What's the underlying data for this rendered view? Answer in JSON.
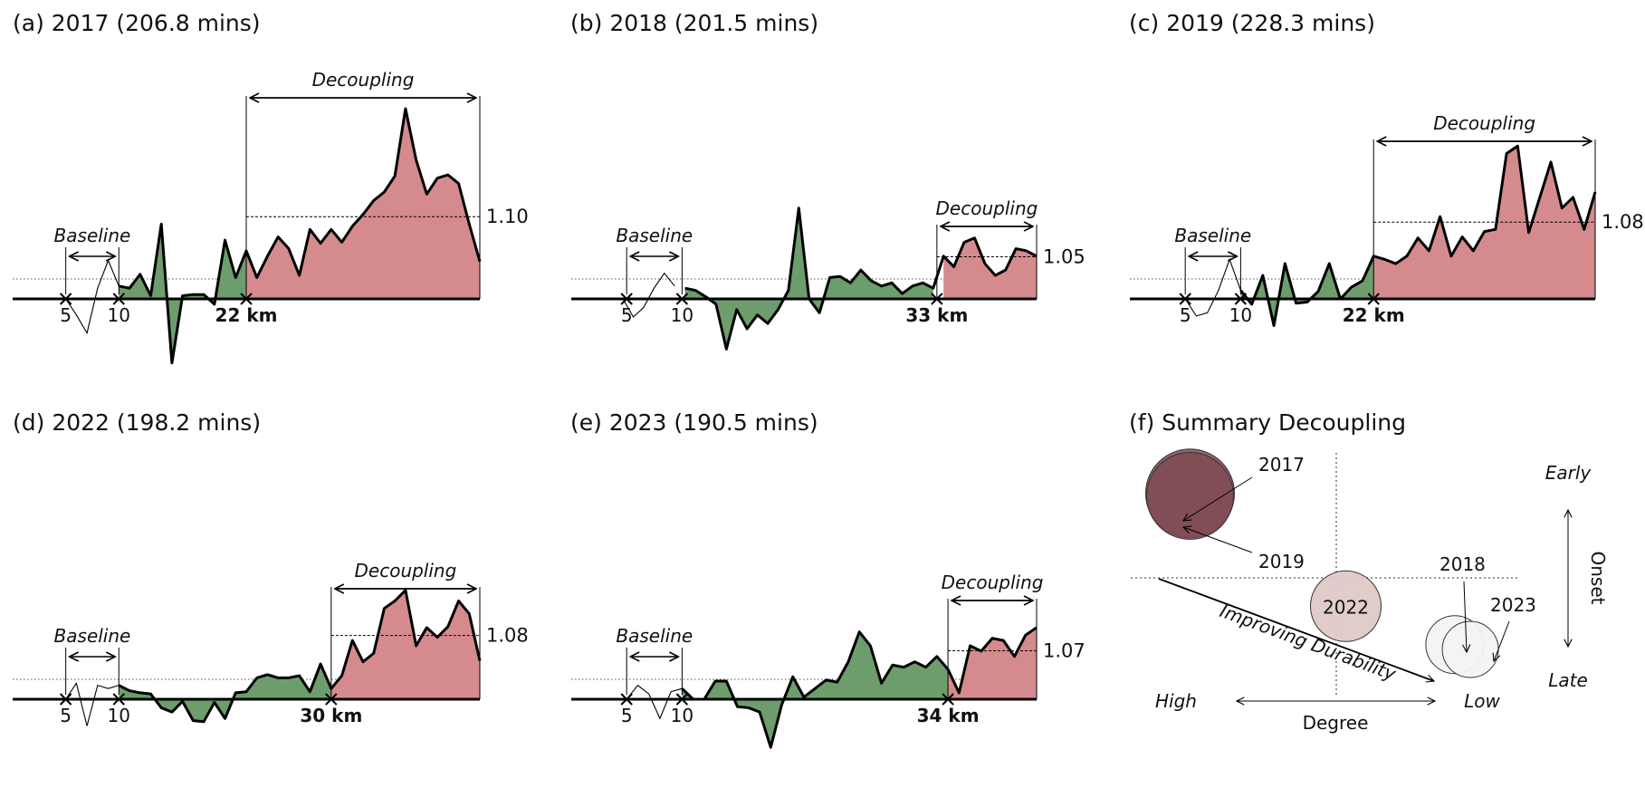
{
  "figure_title": "",
  "colors": {
    "positive": "#d58b8e",
    "negative": "#6d9d6c",
    "line": "#000000"
  },
  "chart_data": [
    {
      "type": "area",
      "title": "(a) 2017 (206.8 mins)",
      "baseline_label": "Baseline",
      "baseline_ticks": [
        "5",
        "10"
      ],
      "baseline_range": [
        5,
        10
      ],
      "decoupling_label": "Decoupling",
      "onset_km": 22,
      "onset_label": "22 km",
      "ratio_label": "1.10",
      "ratio_value": 1.1,
      "x_start": 0,
      "x_end": 44,
      "y_values": [
        0.0,
        0.0,
        0.0,
        0.0,
        0.0,
        0.0,
        -0.15,
        -0.32,
        0.1,
        0.36,
        0.12,
        0.1,
        0.23,
        0.03,
        0.7,
        -0.6,
        0.03,
        0.04,
        0.04,
        -0.05,
        0.55,
        0.2,
        0.45,
        0.2,
        0.4,
        0.58,
        0.47,
        0.22,
        0.65,
        0.52,
        0.65,
        0.53,
        0.68,
        0.79,
        0.92,
        1.0,
        1.15,
        1.78,
        1.3,
        0.98,
        1.13,
        1.16,
        1.08,
        0.7,
        0.35
      ]
    },
    {
      "type": "area",
      "title": "(b) 2018 (201.5 mins)",
      "baseline_label": "Baseline",
      "baseline_ticks": [
        "5",
        "10"
      ],
      "baseline_range": [
        5,
        10
      ],
      "decoupling_label": "Decoupling",
      "onset_km": 33,
      "onset_label": "33 km",
      "ratio_label": "1.05",
      "ratio_value": 1.05,
      "x_start": 0,
      "x_end": 42,
      "y_values": [
        0.0,
        0.0,
        0.0,
        0.0,
        0.0,
        0.0,
        -0.17,
        -0.08,
        0.1,
        0.24,
        0.12,
        0.1,
        0.08,
        0.02,
        -0.05,
        -0.47,
        -0.1,
        -0.28,
        -0.15,
        -0.23,
        -0.1,
        0.08,
        0.85,
        0.0,
        -0.13,
        0.2,
        0.21,
        0.15,
        0.27,
        0.17,
        0.12,
        0.15,
        0.05,
        0.12,
        0.15,
        0.1,
        0.4,
        0.3,
        0.53,
        0.57,
        0.33,
        0.22,
        0.27,
        0.47,
        0.45,
        0.4
      ]
    },
    {
      "type": "area",
      "title": "(c) 2019 (228.3 mins)",
      "baseline_label": "Baseline",
      "baseline_ticks": [
        "5",
        "10"
      ],
      "baseline_range": [
        5,
        10
      ],
      "decoupling_label": "Decoupling",
      "onset_km": 22,
      "onset_label": "22 km",
      "ratio_label": "1.08",
      "ratio_value": 1.08,
      "x_start": 0,
      "x_end": 42,
      "y_values": [
        0.0,
        0.0,
        0.0,
        0.0,
        0.0,
        0.0,
        -0.16,
        -0.13,
        0.08,
        0.37,
        0.08,
        -0.05,
        0.22,
        -0.25,
        0.33,
        -0.04,
        -0.03,
        0.07,
        0.33,
        0.0,
        0.11,
        0.17,
        0.4,
        0.37,
        0.33,
        0.4,
        0.57,
        0.45,
        0.77,
        0.4,
        0.58,
        0.45,
        0.63,
        0.65,
        1.36,
        1.43,
        0.62,
        0.95,
        1.28,
        0.85,
        0.95,
        0.65,
        1.0
      ]
    },
    {
      "type": "area",
      "title": "(d) 2022 (198.2 mins)",
      "baseline_label": "Baseline",
      "baseline_ticks": [
        "5",
        "10"
      ],
      "baseline_range": [
        5,
        10
      ],
      "decoupling_label": "Decoupling",
      "onset_km": 30,
      "onset_label": "30 km",
      "ratio_label": "1.08",
      "ratio_value": 1.08,
      "x_start": 0,
      "x_end": 44,
      "y_values": [
        0.0,
        0.0,
        0.0,
        0.0,
        0.0,
        0.0,
        0.15,
        -0.25,
        0.13,
        0.1,
        0.13,
        0.08,
        0.06,
        0.05,
        -0.08,
        -0.12,
        -0.02,
        -0.2,
        -0.21,
        -0.03,
        -0.18,
        0.06,
        0.07,
        0.2,
        0.23,
        0.2,
        0.2,
        0.22,
        0.07,
        0.33,
        0.1,
        0.22,
        0.55,
        0.35,
        0.43,
        0.85,
        0.92,
        1.02,
        0.5,
        0.67,
        0.58,
        0.68,
        0.92,
        0.8,
        0.36
      ]
    },
    {
      "type": "area",
      "title": "(e) 2023 (190.5 mins)",
      "baseline_label": "Baseline",
      "baseline_ticks": [
        "5",
        "10"
      ],
      "baseline_range": [
        5,
        10
      ],
      "decoupling_label": "Decoupling",
      "onset_km": 34,
      "onset_label": "34 km",
      "ratio_label": "1.07",
      "ratio_value": 1.07,
      "x_start": 0,
      "x_end": 42,
      "y_values": [
        0.0,
        0.0,
        0.0,
        0.0,
        0.0,
        0.0,
        0.13,
        0.05,
        -0.18,
        0.07,
        0.1,
        0.0,
        0.0,
        0.17,
        0.17,
        -0.07,
        -0.08,
        -0.12,
        -0.45,
        -0.05,
        0.21,
        0.02,
        0.1,
        0.18,
        0.16,
        0.35,
        0.63,
        0.5,
        0.15,
        0.32,
        0.3,
        0.35,
        0.3,
        0.4,
        0.28,
        0.06,
        0.5,
        0.45,
        0.57,
        0.55,
        0.4,
        0.6,
        0.67
      ]
    },
    {
      "type": "scatter",
      "title": "(f) Summary Decoupling",
      "xlabel": "Degree",
      "ylabel": "Onset",
      "x_low_label": "High",
      "x_high_label": "Low",
      "y_top_label": "Early",
      "y_bottom_label": "Late",
      "trend_label": "Improving Durability",
      "points": [
        {
          "label": "2017",
          "degree": 0.15,
          "onset": 0.15,
          "color": "#7e4a52",
          "label_position": "above-right"
        },
        {
          "label": "2019",
          "degree": 0.15,
          "onset": 0.16,
          "color": "#7e4a52",
          "label_position": "below-right"
        },
        {
          "label": "2022",
          "degree": 0.55,
          "onset": 0.62,
          "color": "#dfc9c7",
          "label_position": "center"
        },
        {
          "label": "2018",
          "degree": 0.83,
          "onset": 0.78,
          "color": "#f4f2f2",
          "label_position": "above"
        },
        {
          "label": "2023",
          "degree": 0.87,
          "onset": 0.8,
          "color": "#f4f2f2",
          "label_position": "above-right"
        }
      ]
    }
  ]
}
